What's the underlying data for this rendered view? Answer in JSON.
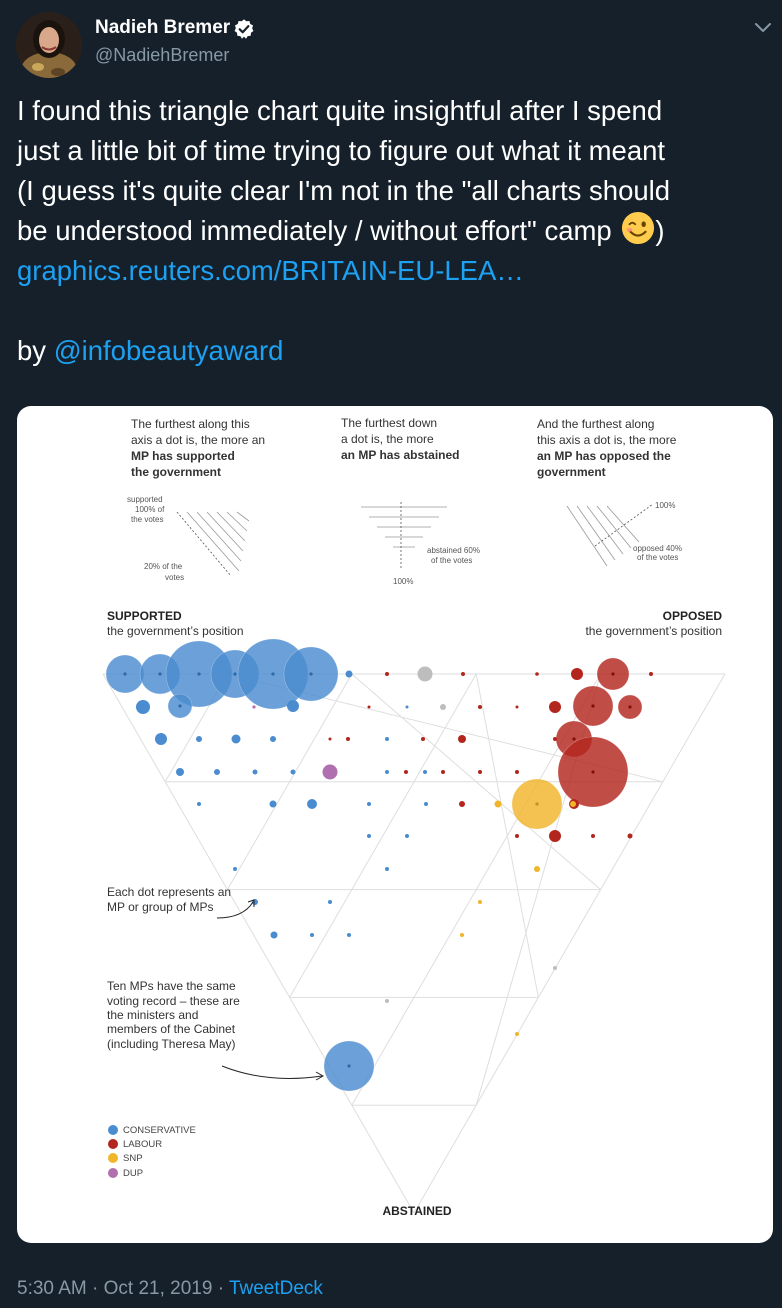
{
  "author": {
    "name": "Nadieh Bremer",
    "handle": "@NadiehBremer"
  },
  "icons": [
    "verified-badge-icon",
    "chevron-down-icon",
    "winking-face-emoji"
  ],
  "tweet": {
    "lines": [
      "I found this triangle chart quite insightful after I spend",
      "just a little bit of time trying to figure out what it meant",
      "(I guess it's quite clear I'm not in the \"all charts should",
      "be understood immediately / without effort\" camp"
    ],
    "closing_paren": ")",
    "link_text": "graphics.reuters.com/BRITAIN-EU-LEA…",
    "by_text": "by",
    "mention": "@infobeautyaward"
  },
  "footer": {
    "time": "5:30 AM",
    "dot1": "·",
    "date": "Oct 21, 2019",
    "dot2": "·",
    "source": "TweetDeck"
  },
  "colors": {
    "background": "#15202b",
    "link": "#1da1f2",
    "secondary_text": "#8899a6",
    "conservative": "#4a8ccf",
    "labour": "#b3261e",
    "snp": "#f0b52a",
    "dup": "#b06fae"
  },
  "chart": {
    "explainers": {
      "supported": {
        "l1": "The furthest along this",
        "l2": "axis a dot is, the more an",
        "l3": "MP has supported",
        "l4": "the government"
      },
      "abstained": {
        "l1": "The furthest down",
        "l2": "a dot is, the more",
        "l3": "an MP has abstained"
      },
      "opposed": {
        "l1": "And the furthest along",
        "l2": "this axis a dot is, the more",
        "l3": "an MP has opposed the",
        "l4": "government"
      }
    },
    "mini_labels": {
      "supported100_1": "supported",
      "supported100_2": "100% of",
      "supported100_3": "the votes",
      "supported20_1": "20% of the",
      "supported20_2": "votes",
      "abstained60_1": "abstained 60%",
      "abstained60_2": "of the votes",
      "abstained100": "100%",
      "opposed100": "100%",
      "opposed40_1": "opposed 40%",
      "opposed40_2": "of the votes"
    },
    "corners": {
      "supported_title": "SUPPORTED",
      "supported_sub": "the government’s position",
      "opposed_title": "OPPOSED",
      "opposed_sub": "the government’s position",
      "abstained_title": "ABSTAINED"
    },
    "annotations": {
      "dot1": "Each dot represents an",
      "dot2": "MP or group of MPs",
      "ten1": "Ten MPs have the same",
      "ten2": "voting record – these are",
      "ten3": "the ministers and",
      "ten4": "members of the Cabinet",
      "ten5": "(including Theresa May)"
    },
    "legend": [
      {
        "label": "CONSERVATIVE",
        "color": "#4a8ccf"
      },
      {
        "label": "LABOUR",
        "color": "#b3261e"
      },
      {
        "label": "SNP",
        "color": "#f0b52a"
      },
      {
        "label": "DUP",
        "color": "#b06fae"
      }
    ]
  }
}
